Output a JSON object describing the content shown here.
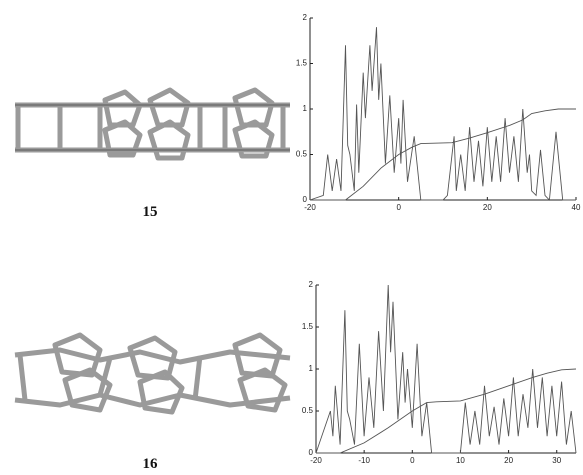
{
  "figures": [
    {
      "label": "15"
    },
    {
      "label": "16"
    }
  ],
  "chart_data": [
    {
      "type": "line",
      "xlim": [
        -20,
        40
      ],
      "xticks": [
        -20,
        0,
        20,
        40
      ],
      "ylim": [
        0,
        2
      ],
      "yticks": [
        0,
        0.5,
        1,
        1.5,
        2
      ],
      "series": [
        {
          "color": "#555555",
          "x": [
            -20,
            -17,
            -16,
            -15,
            -14,
            -13,
            -12,
            -11.5,
            -11,
            -10,
            -9.5,
            -9,
            -8,
            -7.5,
            -6.5,
            -6,
            -5,
            -4.5,
            -4,
            -3,
            -2,
            -1,
            0,
            0.5,
            1,
            2,
            3.5,
            5,
            10,
            11,
            12.5,
            13,
            14,
            15,
            16,
            17,
            18,
            19,
            20,
            21,
            22,
            23,
            24,
            25,
            26,
            27,
            28,
            29,
            29.5,
            30,
            31,
            32,
            33,
            34,
            35.5,
            37,
            40
          ],
          "values": [
            0,
            0.05,
            0.5,
            0.1,
            0.45,
            0.1,
            1.7,
            0.6,
            0.5,
            0.1,
            1.05,
            0.3,
            1.4,
            0.9,
            1.7,
            1.2,
            1.9,
            1.1,
            1.5,
            0.4,
            1.15,
            0.3,
            0.9,
            0.4,
            1.1,
            0.2,
            0.7,
            0,
            0,
            0.05,
            0.7,
            0.1,
            0.5,
            0.1,
            0.8,
            0.2,
            0.65,
            0.15,
            0.8,
            0.2,
            0.7,
            0.2,
            0.9,
            0.3,
            0.7,
            0.2,
            1.0,
            0.3,
            0.5,
            0.1,
            0.05,
            0.55,
            0.05,
            0,
            0.75,
            0,
            0
          ]
        },
        {
          "color": "#555555",
          "x": [
            -20,
            -12,
            -8,
            -4,
            0,
            3,
            5,
            12,
            16,
            20,
            25,
            28,
            30,
            33,
            36,
            40
          ],
          "values": [
            0,
            0,
            0.15,
            0.35,
            0.5,
            0.58,
            0.62,
            0.63,
            0.68,
            0.74,
            0.82,
            0.88,
            0.95,
            0.98,
            1.0,
            1.0
          ]
        }
      ]
    },
    {
      "type": "line",
      "xlim": [
        -20,
        34
      ],
      "xticks": [
        -20,
        -10,
        0,
        10,
        20,
        30
      ],
      "ylim": [
        0,
        2
      ],
      "yticks": [
        0,
        0.5,
        1,
        1.5,
        2
      ],
      "series": [
        {
          "color": "#555555",
          "x": [
            -20,
            -17,
            -16.5,
            -16,
            -15,
            -14,
            -13.5,
            -13,
            -12,
            -11,
            -10,
            -9,
            -8,
            -7,
            -6,
            -5,
            -4.5,
            -4,
            -3,
            -2,
            -1.5,
            -1,
            0,
            1,
            2,
            3,
            4,
            9,
            10,
            11,
            12,
            13,
            14,
            15,
            16,
            17,
            18,
            19,
            20,
            21,
            22,
            23,
            24,
            25,
            26,
            27,
            28,
            29,
            30,
            31,
            32,
            33,
            34
          ],
          "values": [
            0,
            0.5,
            0.2,
            0.8,
            0.1,
            1.7,
            0.5,
            0.4,
            0.1,
            1.3,
            0.2,
            0.9,
            0.3,
            1.45,
            0.5,
            2.0,
            1.2,
            1.8,
            0.4,
            1.2,
            0.6,
            1.0,
            0.3,
            1.3,
            0.2,
            0.6,
            0,
            0,
            0,
            0.6,
            0.1,
            0.5,
            0.1,
            0.8,
            0.2,
            0.55,
            0.1,
            0.65,
            0.2,
            0.9,
            0.2,
            0.7,
            0.3,
            1.0,
            0.3,
            0.9,
            0.2,
            0.8,
            0.2,
            0.85,
            0.1,
            0.5,
            0
          ]
        },
        {
          "color": "#555555",
          "x": [
            -20,
            -15,
            -10,
            -5,
            0,
            3,
            5,
            10,
            15,
            20,
            25,
            28,
            31,
            34
          ],
          "values": [
            0,
            0,
            0.12,
            0.3,
            0.5,
            0.6,
            0.61,
            0.62,
            0.7,
            0.8,
            0.9,
            0.95,
            0.99,
            1.0
          ]
        }
      ]
    }
  ]
}
